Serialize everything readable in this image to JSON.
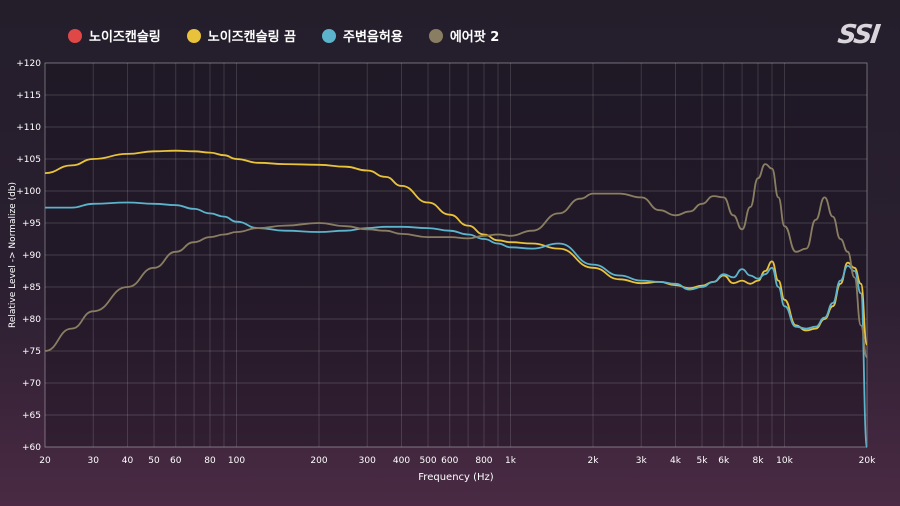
{
  "legend": [
    {
      "name": "노이즈캔슬링",
      "color": "#e04848"
    },
    {
      "name": "노이즈캔슬링 끔",
      "color": "#e8c23a"
    },
    {
      "name": "주변음허용",
      "color": "#5bb4cc"
    },
    {
      "name": "에어팟 2",
      "color": "#8a7e62"
    }
  ],
  "logo_text": "SSI",
  "chart_data": {
    "type": "line",
    "xlabel": "Frequency (Hz)",
    "ylabel": "Relative Level -> Normalize (db)",
    "xscale": "log",
    "xlim": [
      20,
      20000
    ],
    "ylim": [
      60,
      120
    ],
    "grid": true,
    "legend_position": "top-left",
    "x_ticks": [
      {
        "value": 20,
        "label": "20"
      },
      {
        "value": 30,
        "label": "30"
      },
      {
        "value": 40,
        "label": "40"
      },
      {
        "value": 50,
        "label": "50"
      },
      {
        "value": 60,
        "label": "60"
      },
      {
        "value": 80,
        "label": "80"
      },
      {
        "value": 100,
        "label": "100"
      },
      {
        "value": 200,
        "label": "200"
      },
      {
        "value": 300,
        "label": "300"
      },
      {
        "value": 400,
        "label": "400"
      },
      {
        "value": 500,
        "label": "500"
      },
      {
        "value": 600,
        "label": "600"
      },
      {
        "value": 800,
        "label": "800"
      },
      {
        "value": 1000,
        "label": "1k"
      },
      {
        "value": 2000,
        "label": "2k"
      },
      {
        "value": 3000,
        "label": "3k"
      },
      {
        "value": 4000,
        "label": "4k"
      },
      {
        "value": 5000,
        "label": "5k"
      },
      {
        "value": 6000,
        "label": "6k"
      },
      {
        "value": 8000,
        "label": "8k"
      },
      {
        "value": 10000,
        "label": "10k"
      },
      {
        "value": 20000,
        "label": "20k"
      }
    ],
    "x_grid": [
      20,
      30,
      40,
      50,
      60,
      70,
      80,
      90,
      100,
      200,
      300,
      400,
      500,
      600,
      700,
      800,
      900,
      1000,
      2000,
      3000,
      4000,
      5000,
      6000,
      7000,
      8000,
      9000,
      10000,
      20000
    ],
    "y_ticks": [
      {
        "value": 120,
        "label": "+120"
      },
      {
        "value": 115,
        "label": "+115"
      },
      {
        "value": 110,
        "label": "+110"
      },
      {
        "value": 105,
        "label": "+105"
      },
      {
        "value": 100,
        "label": "+100"
      },
      {
        "value": 95,
        "label": "+95"
      },
      {
        "value": 90,
        "label": "+90"
      },
      {
        "value": 85,
        "label": "+85"
      },
      {
        "value": 80,
        "label": "+80"
      },
      {
        "value": 75,
        "label": "+75"
      },
      {
        "value": 70,
        "label": "+70"
      },
      {
        "value": 65,
        "label": "+65"
      },
      {
        "value": 60,
        "label": "+60"
      }
    ],
    "series": [
      {
        "name": "노이즈캔슬링 끔",
        "color": "#e8c23a",
        "x": [
          20,
          25,
          30,
          40,
          50,
          60,
          70,
          80,
          90,
          100,
          120,
          150,
          200,
          250,
          300,
          350,
          400,
          500,
          600,
          700,
          800,
          900,
          1000,
          1200,
          1500,
          2000,
          2500,
          3000,
          3500,
          4000,
          4500,
          5000,
          5500,
          6000,
          6500,
          7000,
          7500,
          8000,
          8500,
          9000,
          9500,
          10000,
          11000,
          12000,
          13000,
          14000,
          15000,
          16000,
          17000,
          18000,
          19000,
          20000
        ],
        "y": [
          102.8,
          104,
          105,
          105.8,
          106.2,
          106.3,
          106.2,
          106,
          105.6,
          105.0,
          104.4,
          104.2,
          104.1,
          103.8,
          103.2,
          102.2,
          100.8,
          98.2,
          96.3,
          94.6,
          93.2,
          92.3,
          92.0,
          91.8,
          91.0,
          88.0,
          86.2,
          85.6,
          85.8,
          85.3,
          84.8,
          85.2,
          85.8,
          86.8,
          85.6,
          86.0,
          85.5,
          86.0,
          87.5,
          89.0,
          86.0,
          83.0,
          79.0,
          78.2,
          78.5,
          80.0,
          82.0,
          85.5,
          88.8,
          88.0,
          85.5,
          76.0
        ]
      },
      {
        "name": "주변음허용",
        "color": "#5bb4cc",
        "x": [
          20,
          25,
          30,
          40,
          50,
          60,
          70,
          80,
          90,
          100,
          120,
          150,
          200,
          250,
          300,
          350,
          400,
          500,
          600,
          700,
          800,
          900,
          1000,
          1200,
          1500,
          2000,
          2500,
          3000,
          3500,
          4000,
          4500,
          5000,
          5500,
          6000,
          6500,
          7000,
          7500,
          8000,
          8500,
          9000,
          9500,
          10000,
          11000,
          12000,
          13000,
          14000,
          15000,
          16000,
          17000,
          18000,
          19000,
          20000
        ],
        "y": [
          97.4,
          97.4,
          98.0,
          98.2,
          98.0,
          97.8,
          97.2,
          96.5,
          96.0,
          95.2,
          94.2,
          93.8,
          93.6,
          93.8,
          94.2,
          94.4,
          94.4,
          94.2,
          93.8,
          93.2,
          92.5,
          91.8,
          91.2,
          91.0,
          91.8,
          88.5,
          86.8,
          86.0,
          85.8,
          85.5,
          84.6,
          85.0,
          85.8,
          87.0,
          86.5,
          87.8,
          86.8,
          86.3,
          87.0,
          88.0,
          85.0,
          82.0,
          78.8,
          78.5,
          78.8,
          80.2,
          82.5,
          86.0,
          88.3,
          87.5,
          84.0,
          60.0
        ]
      },
      {
        "name": "에어팟 2",
        "color": "#8a7e62",
        "x": [
          20,
          25,
          30,
          40,
          50,
          60,
          70,
          80,
          90,
          100,
          120,
          150,
          200,
          250,
          300,
          350,
          400,
          500,
          600,
          700,
          800,
          900,
          1000,
          1200,
          1500,
          1800,
          2000,
          2500,
          3000,
          3500,
          4000,
          4500,
          5000,
          5500,
          6000,
          6500,
          7000,
          7500,
          8000,
          8500,
          9000,
          9500,
          10000,
          11000,
          12000,
          13000,
          14000,
          15000,
          16000,
          17000,
          18000,
          19000,
          20000
        ],
        "y": [
          75.0,
          78.5,
          81.2,
          85.0,
          88.0,
          90.5,
          92.0,
          92.8,
          93.2,
          93.6,
          94.2,
          94.6,
          95.0,
          94.5,
          94.0,
          93.8,
          93.3,
          92.8,
          92.8,
          92.6,
          93.0,
          93.2,
          93.0,
          93.8,
          96.5,
          98.8,
          99.6,
          99.6,
          99.0,
          97.0,
          96.2,
          96.8,
          98.0,
          99.2,
          99.0,
          96.2,
          94.0,
          97.5,
          102.0,
          104.2,
          103.5,
          99.0,
          94.5,
          90.5,
          91.0,
          95.5,
          99.0,
          96.0,
          92.5,
          90.5,
          86.5,
          79.0,
          74.0
        ]
      }
    ]
  }
}
